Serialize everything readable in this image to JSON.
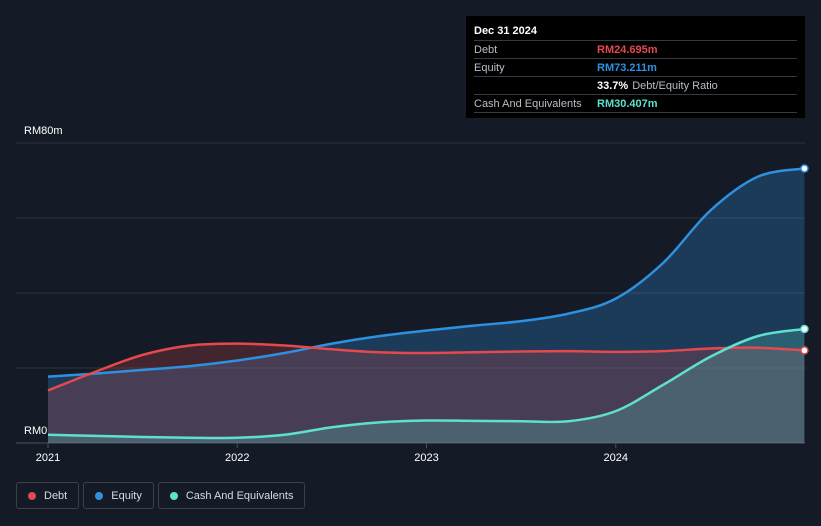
{
  "tooltip": {
    "date": "Dec 31 2024",
    "rows": [
      {
        "label": "Debt",
        "value": "RM24.695m",
        "color": "#e5484d"
      },
      {
        "label": "Equity",
        "value": "RM73.211m",
        "color": "#2d91e0"
      },
      {
        "label": "",
        "value": "33.7%",
        "sub": "Debt/Equity Ratio",
        "color": "#ffffff"
      },
      {
        "label": "Cash And Equivalents",
        "value": "RM30.407m",
        "color": "#5fe0cf"
      }
    ]
  },
  "legend": [
    {
      "label": "Debt",
      "color": "#e5484d"
    },
    {
      "label": "Equity",
      "color": "#2d91e0"
    },
    {
      "label": "Cash And Equivalents",
      "color": "#5fe0cf"
    }
  ],
  "chart_data": {
    "type": "area",
    "ylim": [
      0,
      80
    ],
    "y_tick_labels": [
      "RM0",
      "RM80m"
    ],
    "x_tick_labels": [
      "2021",
      "2022",
      "2023",
      "2024"
    ],
    "x_ticks": [
      2021,
      2022,
      2023,
      2024
    ],
    "xlim": [
      2021,
      2025
    ],
    "grid": true,
    "series": [
      {
        "name": "Debt",
        "color": "#e5484d",
        "x": [
          2021.0,
          2021.25,
          2021.5,
          2021.75,
          2022.0,
          2022.25,
          2022.5,
          2022.75,
          2023.0,
          2023.25,
          2023.5,
          2023.75,
          2024.0,
          2024.25,
          2024.5,
          2024.75,
          2024.997
        ],
        "values": [
          14.0,
          19.0,
          23.5,
          26.0,
          26.5,
          26.0,
          25.0,
          24.2,
          24.0,
          24.2,
          24.4,
          24.5,
          24.3,
          24.5,
          25.2,
          25.4,
          24.695
        ]
      },
      {
        "name": "Equity",
        "color": "#2d91e0",
        "x": [
          2021.0,
          2021.25,
          2021.5,
          2021.75,
          2022.0,
          2022.25,
          2022.5,
          2022.75,
          2023.0,
          2023.25,
          2023.5,
          2023.75,
          2024.0,
          2024.25,
          2024.5,
          2024.75,
          2024.997
        ],
        "values": [
          17.7,
          18.5,
          19.5,
          20.5,
          22.0,
          24.0,
          26.5,
          28.5,
          30.0,
          31.3,
          32.5,
          34.5,
          38.5,
          48.0,
          62.0,
          71.0,
          73.211
        ]
      },
      {
        "name": "Cash And Equivalents",
        "color": "#5fe0cf",
        "x": [
          2021.0,
          2021.25,
          2021.5,
          2021.75,
          2022.0,
          2022.25,
          2022.5,
          2022.75,
          2023.0,
          2023.25,
          2023.5,
          2023.75,
          2024.0,
          2024.25,
          2024.5,
          2024.75,
          2024.997
        ],
        "values": [
          2.2,
          1.9,
          1.6,
          1.4,
          1.4,
          2.2,
          4.2,
          5.5,
          6.0,
          5.9,
          5.8,
          5.8,
          8.5,
          15.5,
          23.0,
          28.5,
          30.407
        ]
      }
    ]
  }
}
